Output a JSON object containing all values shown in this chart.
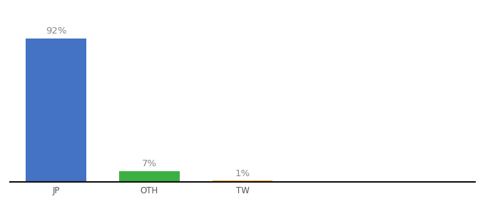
{
  "categories": [
    "JP",
    "OTH",
    "TW"
  ],
  "values": [
    92,
    7,
    1
  ],
  "bar_colors": [
    "#4472c4",
    "#3cb043",
    "#f5a623"
  ],
  "labels": [
    "92%",
    "7%",
    "1%"
  ],
  "background_color": "#ffffff",
  "bar_width": 0.65,
  "ylim": [
    0,
    100
  ],
  "label_fontsize": 9.5,
  "tick_fontsize": 8.5,
  "label_color": "#888888",
  "tick_color": "#555555",
  "bottom_line_color": "#111111"
}
